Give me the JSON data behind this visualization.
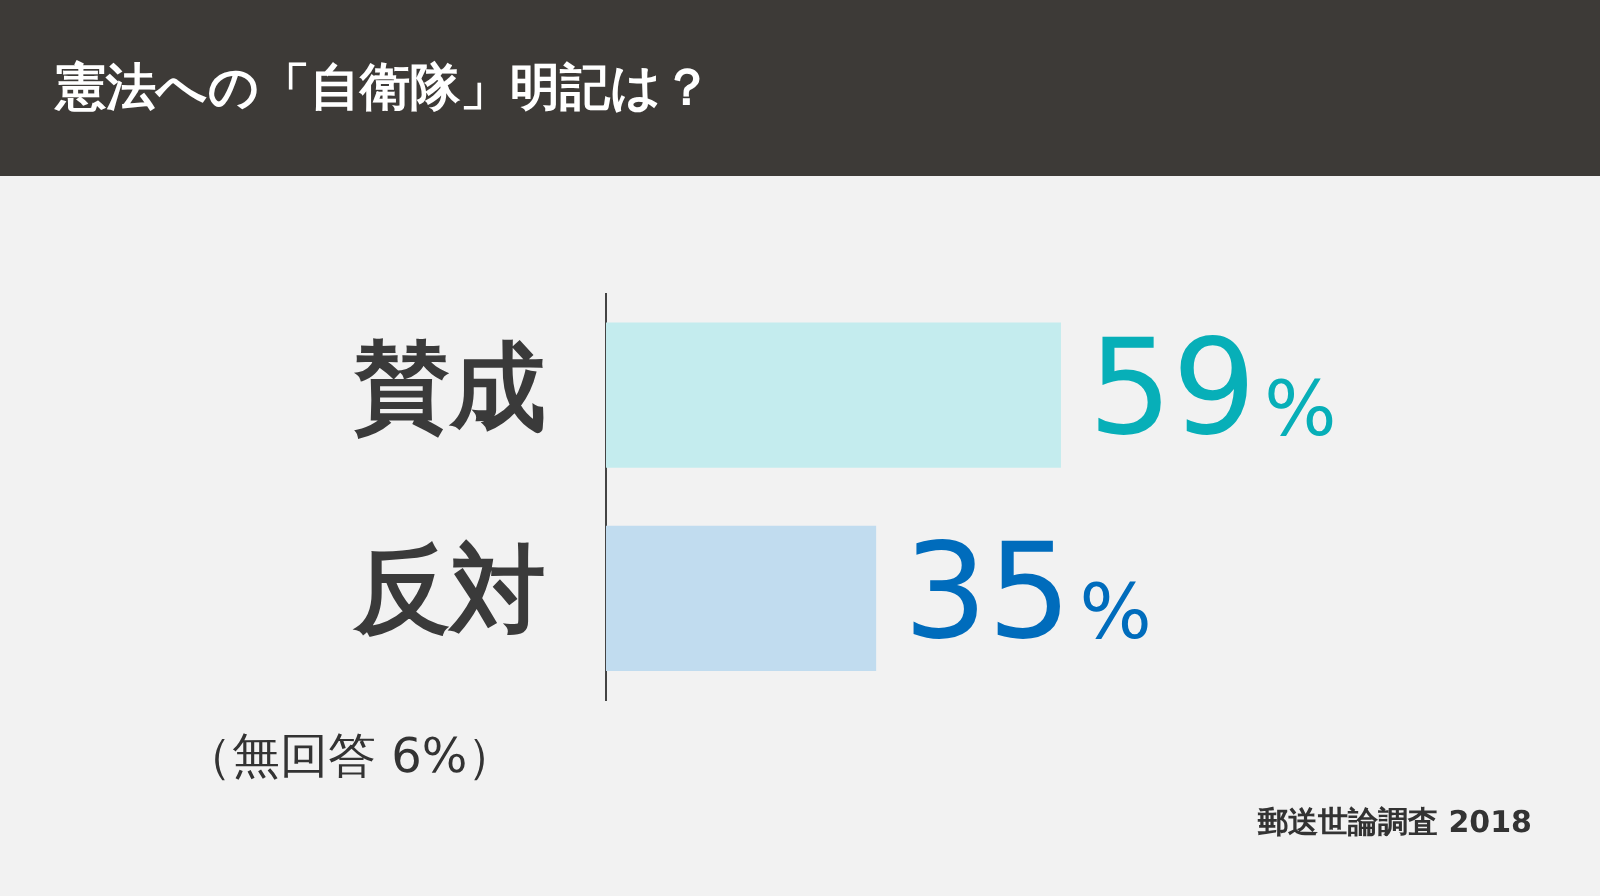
{
  "chart_data": {
    "type": "bar",
    "orientation": "horizontal",
    "title": "憲法への「自衛隊」明記は？",
    "categories": [
      "賛成",
      "反対"
    ],
    "values": [
      59,
      35
    ],
    "value_labels": [
      "59%",
      "35%"
    ],
    "colors": [
      "#c4ecee",
      "#c1dcef"
    ],
    "legend": false,
    "annotations": [
      "（無回答 6%）",
      "郵送世論調査 2018"
    ]
  }
}
